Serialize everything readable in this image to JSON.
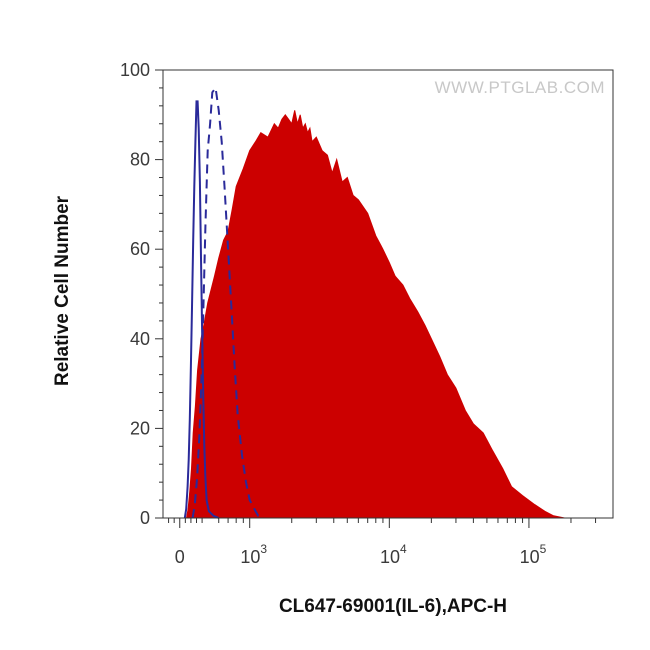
{
  "chart_data": {
    "type": "area",
    "xlabel": "CL647-69001(IL-6),APC-H",
    "ylabel": "Relative Cell Number",
    "watermark": "WWW.PTGLAB.COM",
    "x_scale": "biexponential",
    "xlim": [
      -300,
      400000
    ],
    "ylim": [
      0,
      100
    ],
    "y_ticks": [
      0,
      20,
      40,
      60,
      80,
      100
    ],
    "x_ticks": [
      {
        "value": 0,
        "base": "0",
        "exp": ""
      },
      {
        "value": 1000,
        "base": "10",
        "exp": "3"
      },
      {
        "value": 10000,
        "base": "10",
        "exp": "4"
      },
      {
        "value": 100000,
        "base": "10",
        "exp": "5"
      }
    ],
    "grid": false,
    "legend": "none",
    "series": [
      {
        "style": "filled",
        "color": "#cc0000",
        "x": [
          120,
          150,
          180,
          210,
          240,
          280,
          320,
          380,
          430,
          500,
          560,
          600,
          650,
          700,
          750,
          800,
          900,
          1000,
          1100,
          1200,
          1350,
          1500,
          1600,
          1700,
          1800,
          1900,
          2000,
          2100,
          2200,
          2300,
          2400,
          2500,
          2600,
          2700,
          2800,
          3000,
          3300,
          3600,
          3900,
          4200,
          4600,
          5000,
          5500,
          6000,
          7000,
          8000,
          9000,
          10000,
          11000,
          12500,
          14000,
          16000,
          18000,
          20000,
          23000,
          26000,
          30000,
          35000,
          40000,
          47000,
          55000,
          65000,
          75000,
          90000,
          110000,
          130000,
          150000,
          180000
        ],
        "y": [
          0,
          2,
          6,
          11,
          19,
          25,
          33,
          40,
          43,
          48,
          54,
          58,
          62,
          64,
          69,
          74,
          78,
          82,
          84,
          86,
          85,
          88,
          87,
          89,
          90,
          89,
          88,
          91,
          88,
          90,
          87,
          88,
          86,
          87,
          84,
          85,
          82,
          81,
          77,
          80,
          75,
          76,
          72,
          71,
          68,
          63,
          60,
          57,
          54,
          52,
          49,
          46,
          43,
          40,
          36,
          32,
          29,
          24,
          21,
          19,
          15,
          11,
          7,
          5,
          3,
          1.5,
          0.5,
          0
        ]
      },
      {
        "style": "solid-line",
        "color": "#2a2a9a",
        "x": [
          90,
          115,
          140,
          160,
          180,
          200,
          220,
          240,
          260,
          280,
          300,
          320,
          340,
          360,
          380,
          400,
          420,
          440,
          460,
          480,
          510,
          550,
          600
        ],
        "y": [
          0,
          2,
          7,
          13,
          22,
          34,
          47,
          62,
          74,
          84,
          93,
          93,
          87,
          75,
          58,
          42,
          28,
          16,
          9,
          4,
          1.5,
          0.5,
          0
        ]
      },
      {
        "style": "dashed-line",
        "color": "#2a2a9a",
        "x": [
          230,
          270,
          310,
          350,
          380,
          400,
          420,
          440,
          460,
          480,
          500,
          520,
          540,
          570,
          600,
          630,
          660,
          700,
          740,
          780,
          820,
          880,
          940,
          1000,
          1080,
          1150,
          1250
        ],
        "y": [
          0,
          3,
          9,
          18,
          28,
          36,
          45,
          55,
          65,
          74,
          82,
          88,
          95,
          96,
          91,
          84,
          74,
          60,
          47,
          34,
          23,
          14,
          8,
          4,
          2,
          0.5,
          0
        ]
      }
    ]
  }
}
